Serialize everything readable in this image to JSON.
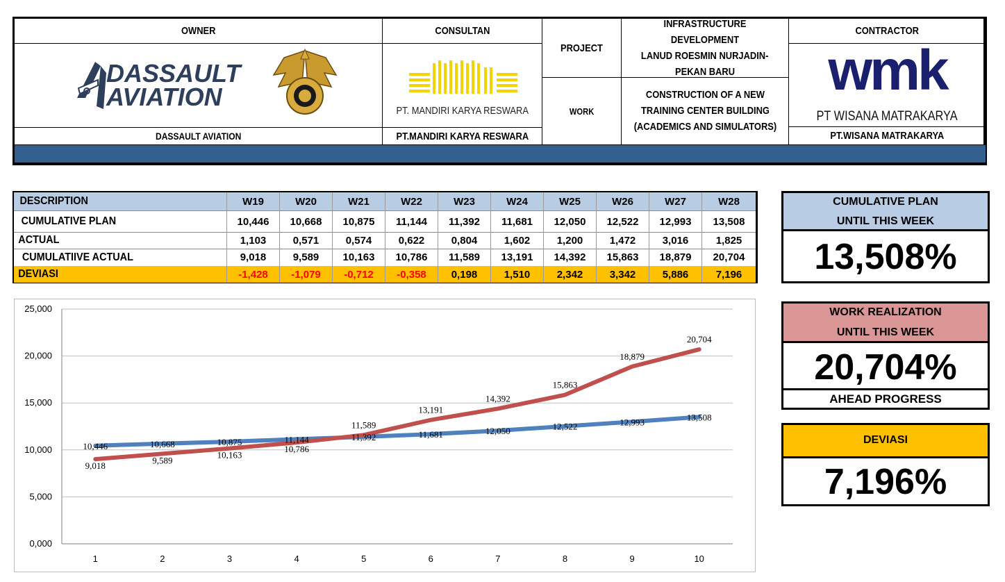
{
  "header": {
    "owner_title": "OWNER",
    "owner_logo_text": [
      "DASSAULT",
      "AVIATION"
    ],
    "owner_name": "DASSAULT AVIATION",
    "consultant_title": "CONSULTAN",
    "consultant_logo_text": "PT. MANDIRI KARYA RESWARA",
    "consultant_name": "PT.MANDIRI KARYA RESWARA",
    "project_label": "PROJECT",
    "project_value": [
      "INFRASTRUCTURE DEVELOPMENT",
      "LANUD ROESMIN NURJADIN-",
      "PEKAN BARU"
    ],
    "work_label": "WORK",
    "work_value": [
      "CONSTRUCTION OF A NEW",
      "TRAINING CENTER BUILDING",
      "(ACADEMICS AND SIMULATORS)"
    ],
    "contractor_title": "CONTRACTOR",
    "contractor_logo_text": "wmk",
    "contractor_logo_sub": "PT WISANA MATRAKARYA",
    "contractor_name": "PT.WISANA MATRAKARYA"
  },
  "table": {
    "header_label": "DESCRIPTION",
    "weeks": [
      "W19",
      "W20",
      "W21",
      "W22",
      "W23",
      "W24",
      "W25",
      "W26",
      "W27",
      "W28"
    ],
    "rows": [
      {
        "label": "CUMULATIVE PLAN",
        "values": [
          "10,446",
          "10,668",
          "10,875",
          "11,144",
          "11,392",
          "11,681",
          "12,050",
          "12,522",
          "12,993",
          "13,508"
        ]
      },
      {
        "label": "ACTUAL",
        "values": [
          "1,103",
          "0,571",
          "0,574",
          "0,622",
          "0,804",
          "1,602",
          "1,200",
          "1,472",
          "3,016",
          "1,825"
        ]
      },
      {
        "label": "CUMULATIIVE ACTUAL",
        "values": [
          "9,018",
          "9,589",
          "10,163",
          "10,786",
          "11,589",
          "13,191",
          "14,392",
          "15,863",
          "18,879",
          "20,704"
        ]
      },
      {
        "label": "DEVIASI",
        "values": [
          "-1,428",
          "-1,079",
          "-0,712",
          "-0,358",
          "0,198",
          "1,510",
          "2,342",
          "3,342",
          "5,886",
          "7,196"
        ]
      }
    ],
    "negative_color": "#ff0000"
  },
  "summary": {
    "plan_title": [
      "CUMULATIVE PLAN",
      "UNTIL THIS WEEK"
    ],
    "plan_value": "13,508%",
    "realization_title": [
      "WORK REALIZATION",
      "UNTIL THIS WEEK"
    ],
    "realization_value": "20,704%",
    "realization_note": "AHEAD PROGRESS",
    "deviation_title": "DEVIASI",
    "deviation_value": "7,196%"
  },
  "colors": {
    "header_band": "#34608f",
    "table_header_bg": "#b8cce4",
    "deviation_bg": "#ffc000",
    "plan_title_bg": "#b8cce4",
    "realization_title_bg": "#da9694",
    "plan_line": "#4f81bd",
    "actual_line": "#c0504d"
  },
  "chart_data": {
    "type": "line",
    "x": [
      1,
      2,
      3,
      4,
      5,
      6,
      7,
      8,
      9,
      10
    ],
    "ylim": [
      0,
      25
    ],
    "yticks": [
      "0,000",
      "5,000",
      "10,000",
      "15,000",
      "20,000",
      "25,000"
    ],
    "ytick_values": [
      0,
      5,
      10,
      15,
      20,
      25
    ],
    "series": [
      {
        "values": [
          10.446,
          10.668,
          10.875,
          11.144,
          11.392,
          11.681,
          12.05,
          12.522,
          12.993,
          13.508
        ],
        "labels": [
          "10,446",
          "10,668",
          "10,875",
          "11,144",
          "11,392",
          "11,681",
          "12,050",
          "12,522",
          "12,993",
          "13,508"
        ],
        "color": "#4f81bd"
      },
      {
        "values": [
          9.018,
          9.589,
          10.163,
          10.786,
          11.589,
          13.191,
          14.392,
          15.863,
          18.879,
          20.704
        ],
        "labels": [
          "9,018",
          "9,589",
          "10,163",
          "10,786",
          "11,589",
          "13,191",
          "14,392",
          "15,863",
          "18,879",
          "20,704"
        ],
        "color": "#c0504d"
      }
    ],
    "grid": true,
    "legend": "none"
  }
}
